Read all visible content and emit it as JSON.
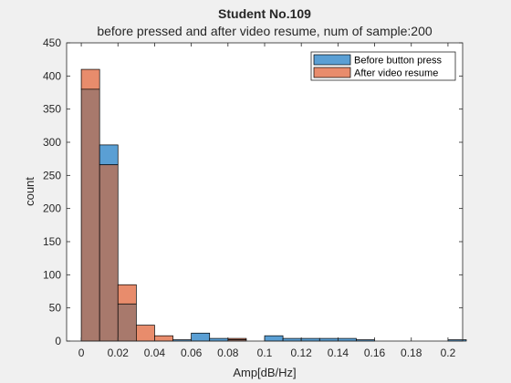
{
  "chart_data": {
    "type": "bar",
    "title": "Student No.109",
    "subtitle": "before pressed and after video resume, num of sample:200",
    "xlabel": "Amp[dB/Hz]",
    "ylabel": "count",
    "xlim": [
      -0.008,
      0.208
    ],
    "ylim": [
      0,
      450
    ],
    "xticks": [
      0,
      0.02,
      0.04,
      0.06,
      0.08,
      0.1,
      0.12,
      0.14,
      0.16,
      0.18,
      0.2
    ],
    "xtick_labels": [
      "0",
      "0.02",
      "0.04",
      "0.06",
      "0.08",
      "0.1",
      "0.12",
      "0.14",
      "0.16",
      "0.18",
      "0.2"
    ],
    "yticks": [
      0,
      50,
      100,
      150,
      200,
      250,
      300,
      350,
      400,
      450
    ],
    "ytick_labels": [
      "0",
      "50",
      "100",
      "150",
      "200",
      "250",
      "300",
      "350",
      "400",
      "450"
    ],
    "bin_edges": [
      0,
      0.01,
      0.02,
      0.03,
      0.04,
      0.05,
      0.06,
      0.07,
      0.08,
      0.09,
      0.1,
      0.11,
      0.12,
      0.13,
      0.14,
      0.15,
      0.16,
      0.17,
      0.18,
      0.19,
      0.2,
      0.21
    ],
    "legend_position": "top-right",
    "grid": false,
    "series": [
      {
        "name": "Before button press",
        "color": "#5a9fd4",
        "values": [
          380,
          296,
          56,
          0,
          0,
          2,
          12,
          4,
          2,
          0,
          8,
          4,
          4,
          4,
          4,
          2,
          0,
          0,
          0,
          0,
          2
        ]
      },
      {
        "name": "After video resume",
        "color": "#e88c6c",
        "values": [
          410,
          266,
          85,
          24,
          8,
          0,
          0,
          0,
          4,
          0,
          0,
          0,
          0,
          0,
          0,
          0,
          0,
          0,
          0,
          0,
          0
        ]
      }
    ],
    "overlap_color": "#a8796c"
  }
}
